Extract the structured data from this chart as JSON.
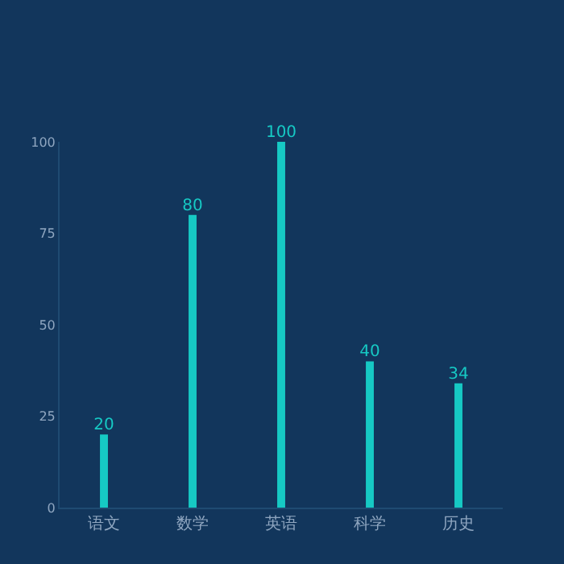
{
  "chart_data": {
    "type": "bar",
    "categories": [
      "语文",
      "数学",
      "英语",
      "科学",
      "历史"
    ],
    "values": [
      20,
      80,
      100,
      40,
      34
    ],
    "color": "#16c9c4",
    "ylim": [
      0,
      100
    ],
    "yticks": [
      0,
      25,
      50,
      75,
      100
    ],
    "data_labels": true,
    "grid": false,
    "legend": false
  }
}
